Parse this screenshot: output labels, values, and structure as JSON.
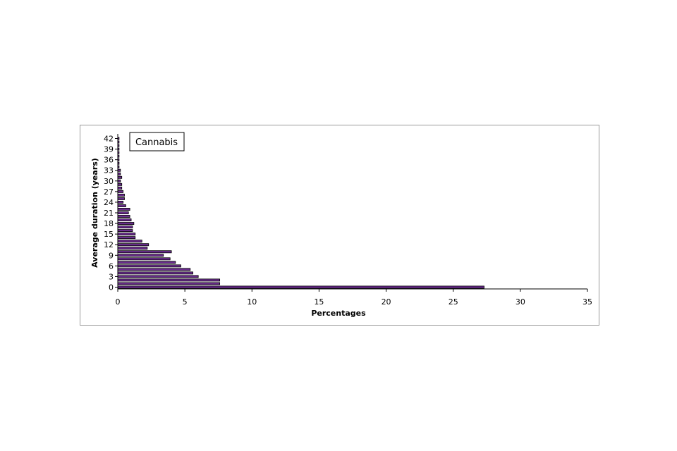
{
  "chart_data": {
    "type": "bar",
    "orientation": "horizontal",
    "legend_label": "Cannabis",
    "legend_placement": "top-left",
    "xlabel": "Percentages",
    "ylabel": "Average duration (years)",
    "xlim": [
      0,
      35
    ],
    "x_ticks": [
      "0",
      "5",
      "10",
      "15",
      "20",
      "25",
      "30",
      "35"
    ],
    "y_ticks": [
      "0",
      "3",
      "6",
      "9",
      "12",
      "15",
      "18",
      "21",
      "24",
      "27",
      "30",
      "33",
      "36",
      "39",
      "42"
    ],
    "grid": false,
    "bar_color": "#6a2c8e",
    "bar_outline_color": "#000000",
    "categories": [
      0,
      1,
      2,
      3,
      4,
      5,
      6,
      7,
      8,
      9,
      10,
      11,
      12,
      13,
      14,
      15,
      16,
      17,
      18,
      19,
      20,
      21,
      22,
      23,
      24,
      25,
      26,
      27,
      28,
      29,
      30,
      31,
      32,
      33,
      34,
      35,
      36,
      37,
      38,
      39,
      40,
      41,
      42
    ],
    "values": [
      27.3,
      7.6,
      7.6,
      6.0,
      5.6,
      5.4,
      4.7,
      4.3,
      3.9,
      3.4,
      4.0,
      2.2,
      2.3,
      1.8,
      1.3,
      1.3,
      1.1,
      1.1,
      1.2,
      1.0,
      0.9,
      0.8,
      0.9,
      0.6,
      0.4,
      0.5,
      0.5,
      0.4,
      0.3,
      0.3,
      0.2,
      0.3,
      0.2,
      0.2,
      0.1,
      0.1,
      0.1,
      0.1,
      0.1,
      0.1,
      0.1,
      0.1,
      0.1
    ]
  }
}
